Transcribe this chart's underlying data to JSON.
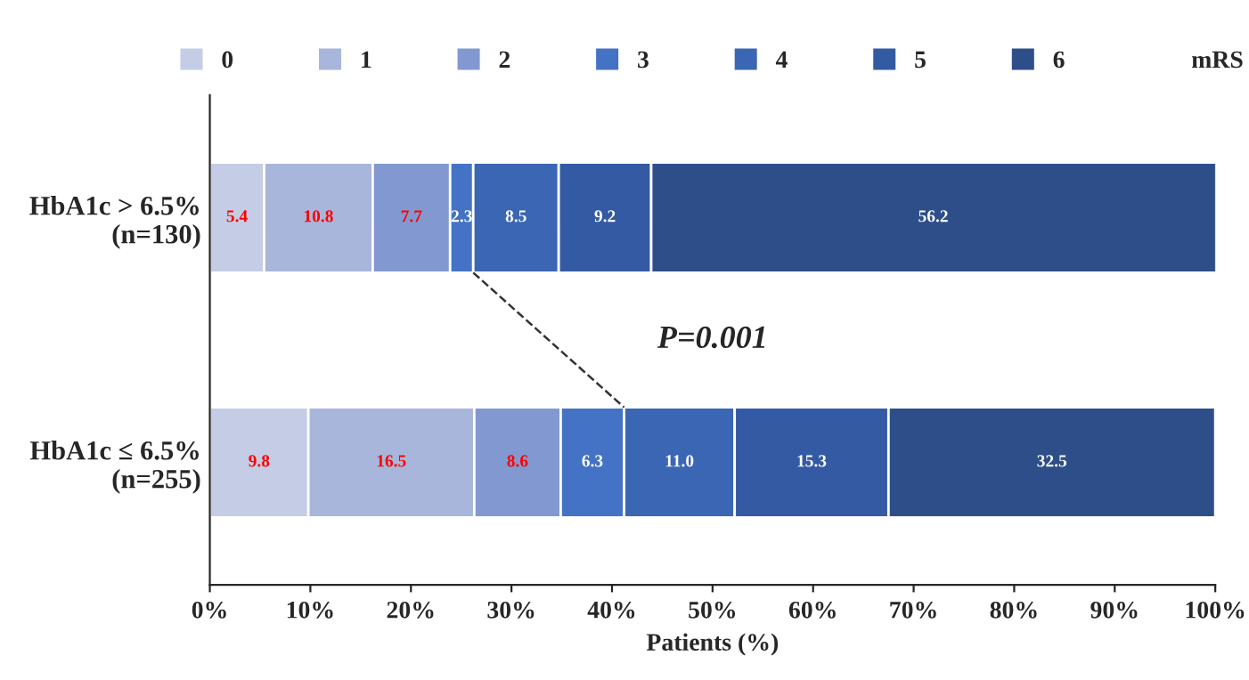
{
  "chart_data": {
    "type": "bar",
    "orientation": "horizontal",
    "stacked": true,
    "legend": "top",
    "legend_title": "mRS",
    "xlabel": "Patients (%)",
    "categories": [
      "HbA1c > 6.5%\n(n=130)",
      "HbA1c ≤ 6.5%\n(n=255)"
    ],
    "series": [
      {
        "name": "0",
        "color": "#c5cce6",
        "values": [
          5.4,
          9.8
        ],
        "value_labels": [
          "5.4",
          "9.8"
        ]
      },
      {
        "name": "1",
        "color": "#a8b6dc",
        "values": [
          10.8,
          16.5
        ],
        "value_labels": [
          "10.8",
          "16.5"
        ]
      },
      {
        "name": "2",
        "color": "#8199d0",
        "values": [
          7.7,
          8.6
        ],
        "value_labels": [
          "7.7",
          "8.6"
        ]
      },
      {
        "name": "3",
        "color": "#4472c4",
        "values": [
          2.3,
          6.3
        ],
        "value_labels": [
          "2.3",
          "6.3"
        ]
      },
      {
        "name": "4",
        "color": "#3b66b4",
        "values": [
          8.5,
          11.0
        ],
        "value_labels": [
          "8.5",
          "11.0"
        ]
      },
      {
        "name": "5",
        "color": "#345aa3",
        "values": [
          9.2,
          15.3
        ],
        "value_labels": [
          "9.2",
          "15.3"
        ]
      },
      {
        "name": "6",
        "color": "#2e4e8a",
        "values": [
          56.2,
          32.5
        ],
        "value_labels": [
          "56.2",
          "32.5"
        ]
      }
    ],
    "xlim": [
      0,
      100
    ],
    "xticks": [
      {
        "value": 0,
        "label": "0%"
      },
      {
        "value": 10,
        "label": "10%"
      },
      {
        "value": 20,
        "label": "20%"
      },
      {
        "value": 30,
        "label": "30%"
      },
      {
        "value": 40,
        "label": "40%"
      },
      {
        "value": 50,
        "label": "50%"
      },
      {
        "value": 60,
        "label": "60%"
      },
      {
        "value": 70,
        "label": "70%"
      },
      {
        "value": 80,
        "label": "80%"
      },
      {
        "value": 90,
        "label": "90%"
      },
      {
        "value": 100,
        "label": "100%"
      }
    ],
    "grid": false,
    "annotations": [
      "P=0.001"
    ]
  }
}
